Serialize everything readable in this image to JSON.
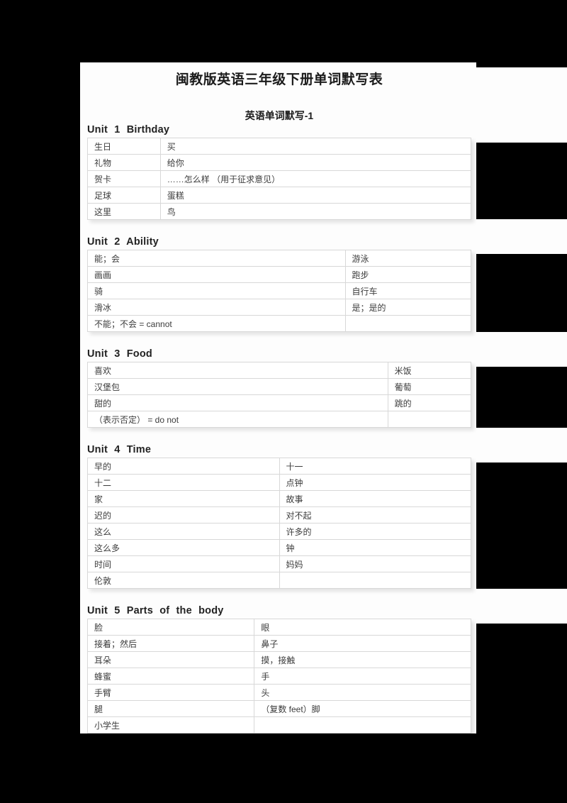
{
  "page": {
    "title": "闽教版英语三年级下册单词默写表",
    "subtitle": "英语单词默写-1"
  },
  "sections": [
    {
      "header": "Unit 1 Birthday",
      "rows": [
        [
          "生日",
          "买"
        ],
        [
          "礼物",
          "给你"
        ],
        [
          "贺卡",
          "……怎么样 （用于征求意见）"
        ],
        [
          "足球",
          "蛋糕"
        ],
        [
          "这里",
          "鸟"
        ]
      ]
    },
    {
      "header": "Unit 2 Ability",
      "rows": [
        [
          "能；会",
          "游泳"
        ],
        [
          "画画",
          "跑步"
        ],
        [
          "骑",
          "自行车"
        ],
        [
          "滑冰",
          "是；是的"
        ],
        [
          "不能；不会 = cannot",
          ""
        ]
      ]
    },
    {
      "header": "Unit 3 Food",
      "rows": [
        [
          "喜欢",
          "米饭"
        ],
        [
          "汉堡包",
          "葡萄"
        ],
        [
          "甜的",
          "跳的"
        ],
        [
          "（表示否定） = do not",
          ""
        ]
      ]
    },
    {
      "header": "Unit 4 Time",
      "rows": [
        [
          "早的",
          "十一"
        ],
        [
          "十二",
          "点钟"
        ],
        [
          "家",
          "故事"
        ],
        [
          "迟的",
          "对不起"
        ],
        [
          "这么",
          "许多的"
        ],
        [
          "这么多",
          "钟"
        ],
        [
          "时间",
          "妈妈"
        ],
        [
          "伦敦",
          ""
        ]
      ]
    },
    {
      "header": "Unit 5 Parts of the body",
      "rows": [
        [
          "脸",
          "眼"
        ],
        [
          "接着；然后",
          "鼻子"
        ],
        [
          "耳朵",
          "摸，接触"
        ],
        [
          "蜂蜜",
          "手"
        ],
        [
          "手臂",
          "头"
        ],
        [
          "腿",
          "（复数 feet）脚"
        ],
        [
          "小学生",
          ""
        ]
      ]
    }
  ],
  "colors": {
    "background": "#000000",
    "page": "#fdfdfd",
    "table_border": "#d8d8d8",
    "cell_text": "#3c3c3c",
    "heading_text": "#1b1b1b"
  }
}
